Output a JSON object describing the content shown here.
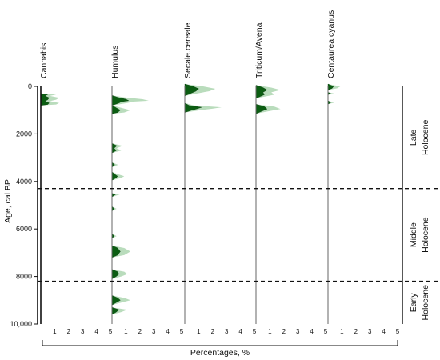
{
  "chart_data": {
    "type": "area",
    "ylabel": "Age, cal BP",
    "xlabel": "Percentages, %",
    "ylim": [
      0,
      10000
    ],
    "y_ticks": [
      "0",
      "2000",
      "4000",
      "6000",
      "8000",
      "10,000"
    ],
    "x_ticks": [
      "1",
      "2",
      "3",
      "4",
      "5"
    ],
    "x_range_per_panel": [
      0,
      5
    ],
    "zone_boundaries": [
      4300,
      8200
    ],
    "zones": [
      {
        "line1": "Late",
        "line2": "Holocene",
        "from": 0,
        "to": 4300
      },
      {
        "line1": "Middle",
        "line2": "Holocene",
        "from": 4300,
        "to": 8200
      },
      {
        "line1": "Early",
        "line2": "Holocene",
        "from": 8200,
        "to": 10000
      }
    ],
    "colors": {
      "values": "#0b5d12",
      "exaggeration": "#b9dcbc",
      "axis": "#111111",
      "dashed": "#111111"
    },
    "series": [
      {
        "name": "Cannabis",
        "points": [
          [
            300,
            0
          ],
          [
            340,
            0.5
          ],
          [
            400,
            0.3
          ],
          [
            480,
            0.6
          ],
          [
            560,
            0.5
          ],
          [
            620,
            0.3
          ],
          [
            700,
            0.6
          ],
          [
            760,
            0.5
          ],
          [
            800,
            0
          ]
        ]
      },
      {
        "name": "Humulus",
        "points": [
          [
            380,
            0
          ],
          [
            460,
            0.4
          ],
          [
            540,
            1.0
          ],
          [
            600,
            1.2
          ],
          [
            640,
            0.7
          ],
          [
            700,
            0.5
          ],
          [
            760,
            0.2
          ],
          [
            800,
            0
          ],
          [
            900,
            0.3
          ],
          [
            1000,
            0.6
          ],
          [
            1100,
            0.4
          ],
          [
            1150,
            0
          ],
          [
            2400,
            0
          ],
          [
            2500,
            0.35
          ],
          [
            2600,
            0.15
          ],
          [
            2700,
            0.3
          ],
          [
            2800,
            0
          ],
          [
            3200,
            0
          ],
          [
            3300,
            0.2
          ],
          [
            3400,
            0
          ],
          [
            3600,
            0
          ],
          [
            3700,
            0.2
          ],
          [
            3780,
            0.4
          ],
          [
            3850,
            0.3
          ],
          [
            3950,
            0
          ],
          [
            4500,
            0
          ],
          [
            4550,
            0.25
          ],
          [
            4650,
            0
          ],
          [
            5050,
            0
          ],
          [
            5150,
            0.15
          ],
          [
            5250,
            0
          ],
          [
            6200,
            0
          ],
          [
            6300,
            0.15
          ],
          [
            6400,
            0
          ],
          [
            6700,
            0
          ],
          [
            6800,
            0.4
          ],
          [
            6950,
            0.6
          ],
          [
            7100,
            0.4
          ],
          [
            7200,
            0
          ],
          [
            7700,
            0
          ],
          [
            7800,
            0.4
          ],
          [
            7900,
            0.5
          ],
          [
            8000,
            0.3
          ],
          [
            8100,
            0
          ],
          [
            8800,
            0
          ],
          [
            8900,
            0.4
          ],
          [
            9000,
            0.6
          ],
          [
            9100,
            0.3
          ],
          [
            9200,
            0
          ],
          [
            9300,
            0
          ],
          [
            9400,
            0.5
          ],
          [
            9500,
            0.3
          ],
          [
            9600,
            0
          ]
        ]
      },
      {
        "name": "Secale.cereale",
        "points": [
          [
            -100,
            0
          ],
          [
            0,
            0.6
          ],
          [
            100,
            1.0
          ],
          [
            200,
            0.8
          ],
          [
            300,
            0.4
          ],
          [
            400,
            0
          ],
          [
            700,
            0
          ],
          [
            800,
            0.3
          ],
          [
            880,
            1.2
          ],
          [
            940,
            0.9
          ],
          [
            1000,
            0.5
          ],
          [
            1100,
            0
          ]
        ]
      },
      {
        "name": "Triticum/Avena",
        "points": [
          [
            -50,
            0
          ],
          [
            50,
            0.5
          ],
          [
            150,
            0.8
          ],
          [
            250,
            0.5
          ],
          [
            350,
            0.6
          ],
          [
            450,
            0.2
          ],
          [
            500,
            0
          ],
          [
            750,
            0
          ],
          [
            850,
            0.6
          ],
          [
            950,
            0.8
          ],
          [
            1050,
            0.4
          ],
          [
            1150,
            0
          ]
        ]
      },
      {
        "name": "Centaurea.cyanus",
        "points": [
          [
            -100,
            0
          ],
          [
            0,
            0.4
          ],
          [
            80,
            0.3
          ],
          [
            150,
            0
          ],
          [
            250,
            0
          ],
          [
            300,
            0.2
          ],
          [
            350,
            0
          ],
          [
            600,
            0
          ],
          [
            680,
            0.2
          ],
          [
            750,
            0
          ]
        ]
      }
    ]
  }
}
